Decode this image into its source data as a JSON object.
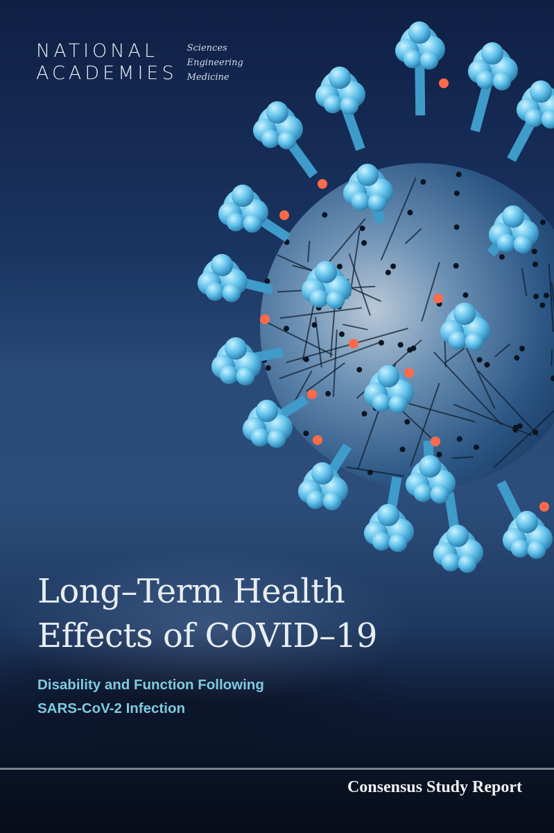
{
  "publisher": {
    "line1": "NATIONAL",
    "line2": "ACADEMIES",
    "divisions": [
      "Sciences",
      "Engineering",
      "Medicine"
    ]
  },
  "title": {
    "line1": "Long–Term Health",
    "line2": "Effects of COVID–19"
  },
  "subtitle": {
    "line1": "Disability and Function Following",
    "line2": "SARS-CoV-2 Infection"
  },
  "series_label": "Consensus Study Report",
  "colors": {
    "background": "#1a3461",
    "subtitle": "#7ecbe0",
    "virus_spike": "#5fc0ea",
    "virus_dot": "#ff6a4a"
  },
  "cover_image": "coronavirus-illustration"
}
